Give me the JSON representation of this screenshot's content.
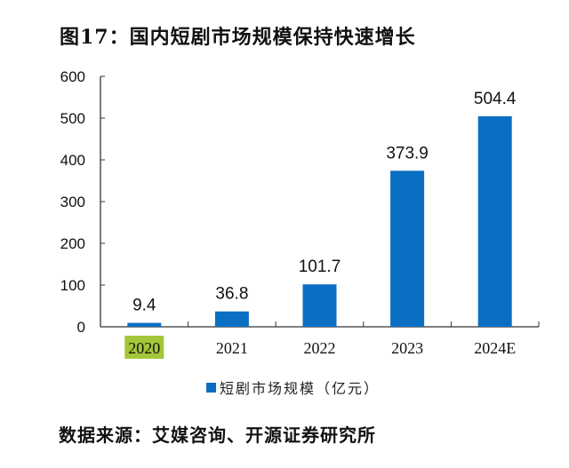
{
  "title": "图17：国内短剧市场规模保持快速增长",
  "source": "数据来源：艾媒咨询、开源证券研究所",
  "chart_data": {
    "type": "bar",
    "categories": [
      "2020",
      "2021",
      "2022",
      "2023",
      "2024E"
    ],
    "series": [
      {
        "name": "短剧市场规模（亿元）",
        "values": [
          9.4,
          36.8,
          101.7,
          373.9,
          504.4
        ]
      }
    ],
    "data_labels": [
      "9.4",
      "36.8",
      "101.7",
      "373.9",
      "504.4"
    ],
    "ylim": [
      0,
      600
    ],
    "yticks": [
      0,
      100,
      200,
      300,
      400,
      500,
      600
    ],
    "grid": false,
    "legend": "bottom",
    "highlighted_category": "2020",
    "colors": {
      "bar": "#0a6fc2",
      "highlight": "#a4c639"
    }
  }
}
